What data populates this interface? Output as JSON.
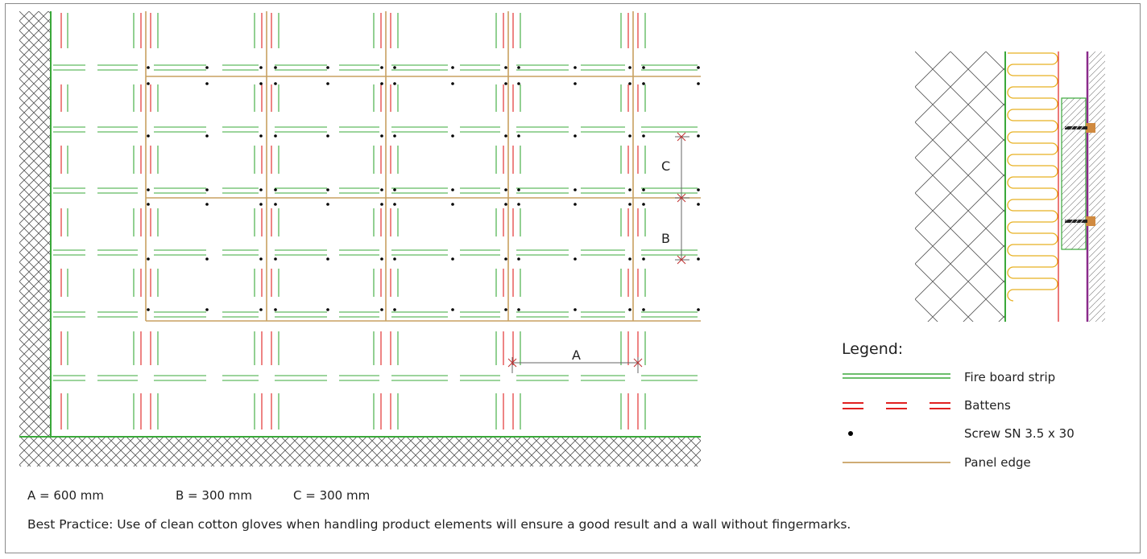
{
  "plan": {
    "dim_a_label": "A",
    "dim_b_label": "B",
    "dim_c_label": "C"
  },
  "legend": {
    "title": "Legend:",
    "items": [
      {
        "label": "Fire board strip",
        "color": "#3aa83a"
      },
      {
        "label": "Battens",
        "color": "#e02020"
      },
      {
        "label": "Screw SN 3.5 x 30",
        "color": "#000000"
      },
      {
        "label": "Panel edge",
        "color": "#c8a060"
      }
    ]
  },
  "dimensions": {
    "a": "A = 600 mm",
    "b": "B = 300 mm",
    "c": "C = 300 mm"
  },
  "note": "Best Practice: Use of clean cotton gloves when handling product elements will ensure a good result and a wall without fingermarks."
}
